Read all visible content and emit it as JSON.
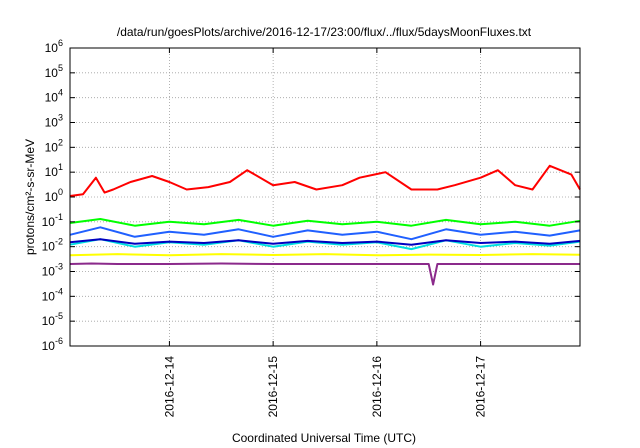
{
  "chart_data": {
    "type": "line",
    "title": "/data/run/goesPlots/archive/2016-12-17/23:00/flux/../flux/5daysMoonFluxes.txt",
    "xlabel": "Coordinated Universal Time (UTC)",
    "ylabel": "protons/cm²-s-sr-MeV",
    "y_scale": "log",
    "ylim": [
      1e-06,
      1000000.0
    ],
    "y_ticks": [
      {
        "value": 1e-06,
        "base": "10",
        "exp": "-6"
      },
      {
        "value": 1e-05,
        "base": "10",
        "exp": "-5"
      },
      {
        "value": 0.0001,
        "base": "10",
        "exp": "-4"
      },
      {
        "value": 0.001,
        "base": "10",
        "exp": "-3"
      },
      {
        "value": 0.01,
        "base": "10",
        "exp": "-2"
      },
      {
        "value": 0.1,
        "base": "10",
        "exp": "-1"
      },
      {
        "value": 1.0,
        "base": "10",
        "exp": "0"
      },
      {
        "value": 10.0,
        "base": "10",
        "exp": "1"
      },
      {
        "value": 100.0,
        "base": "10",
        "exp": "2"
      },
      {
        "value": 1000.0,
        "base": "10",
        "exp": "3"
      },
      {
        "value": 10000.0,
        "base": "10",
        "exp": "4"
      },
      {
        "value": 100000.0,
        "base": "10",
        "exp": "5"
      },
      {
        "value": 1000000.0,
        "base": "10",
        "exp": "6"
      }
    ],
    "xlim": [
      "2016-12-13 01:00",
      "2016-12-17 23:00"
    ],
    "x_ticks": [
      "2016-12-14",
      "2016-12-15",
      "2016-12-16",
      "2016-12-17"
    ],
    "grid": true,
    "legend": "none",
    "series": [
      {
        "color": "#ff0000",
        "x": [
          "2016-12-13 01:00",
          "2016-12-13 04:00",
          "2016-12-13 07:00",
          "2016-12-13 09:00",
          "2016-12-13 11:00",
          "2016-12-13 15:00",
          "2016-12-13 20:00",
          "2016-12-14 00:00",
          "2016-12-14 04:00",
          "2016-12-14 09:00",
          "2016-12-14 14:00",
          "2016-12-14 18:00",
          "2016-12-15 00:00",
          "2016-12-15 05:00",
          "2016-12-15 10:00",
          "2016-12-15 16:00",
          "2016-12-15 20:00",
          "2016-12-16 02:00",
          "2016-12-16 08:00",
          "2016-12-16 14:00",
          "2016-12-16 18:00",
          "2016-12-17 00:00",
          "2016-12-17 04:00",
          "2016-12-17 08:00",
          "2016-12-17 12:00",
          "2016-12-17 16:00",
          "2016-12-17 21:00",
          "2016-12-17 23:00"
        ],
        "y": [
          1.1,
          1.3,
          6,
          1.5,
          2,
          4,
          7,
          4,
          2,
          2.5,
          4,
          12,
          3,
          4,
          2,
          3,
          6,
          10,
          2,
          2,
          3,
          6,
          12,
          3,
          2,
          18,
          8,
          2
        ]
      },
      {
        "color": "#00ff00",
        "x": [
          "2016-12-13 01:00",
          "2016-12-13 08:00",
          "2016-12-13 16:00",
          "2016-12-14 00:00",
          "2016-12-14 08:00",
          "2016-12-14 16:00",
          "2016-12-15 00:00",
          "2016-12-15 08:00",
          "2016-12-15 16:00",
          "2016-12-16 00:00",
          "2016-12-16 08:00",
          "2016-12-16 16:00",
          "2016-12-17 00:00",
          "2016-12-17 08:00",
          "2016-12-17 16:00",
          "2016-12-17 23:00"
        ],
        "y": [
          0.09,
          0.13,
          0.07,
          0.1,
          0.08,
          0.12,
          0.07,
          0.11,
          0.08,
          0.1,
          0.07,
          0.12,
          0.08,
          0.1,
          0.07,
          0.11
        ]
      },
      {
        "color": "#00e0e0",
        "x": [
          "2016-12-13 01:00",
          "2016-12-13 08:00",
          "2016-12-13 16:00",
          "2016-12-14 00:00",
          "2016-12-14 08:00",
          "2016-12-14 16:00",
          "2016-12-15 00:00",
          "2016-12-15 08:00",
          "2016-12-15 16:00",
          "2016-12-16 00:00",
          "2016-12-16 08:00",
          "2016-12-16 16:00",
          "2016-12-17 00:00",
          "2016-12-17 08:00",
          "2016-12-17 16:00",
          "2016-12-17 23:00"
        ],
        "y": [
          0.012,
          0.02,
          0.01,
          0.015,
          0.012,
          0.018,
          0.01,
          0.016,
          0.012,
          0.015,
          0.008,
          0.018,
          0.01,
          0.014,
          0.011,
          0.016
        ]
      },
      {
        "color": "#2060ff",
        "x": [
          "2016-12-13 01:00",
          "2016-12-13 08:00",
          "2016-12-13 16:00",
          "2016-12-14 00:00",
          "2016-12-14 08:00",
          "2016-12-14 16:00",
          "2016-12-15 00:00",
          "2016-12-15 08:00",
          "2016-12-15 16:00",
          "2016-12-16 00:00",
          "2016-12-16 08:00",
          "2016-12-16 16:00",
          "2016-12-17 00:00",
          "2016-12-17 08:00",
          "2016-12-17 16:00",
          "2016-12-17 23:00"
        ],
        "y": [
          0.03,
          0.06,
          0.025,
          0.04,
          0.03,
          0.05,
          0.025,
          0.045,
          0.03,
          0.04,
          0.02,
          0.05,
          0.03,
          0.04,
          0.028,
          0.045
        ]
      },
      {
        "color": "#0000c0",
        "x": [
          "2016-12-13 01:00",
          "2016-12-13 08:00",
          "2016-12-13 16:00",
          "2016-12-14 00:00",
          "2016-12-14 08:00",
          "2016-12-14 16:00",
          "2016-12-15 00:00",
          "2016-12-15 08:00",
          "2016-12-15 16:00",
          "2016-12-16 00:00",
          "2016-12-16 08:00",
          "2016-12-16 16:00",
          "2016-12-17 00:00",
          "2016-12-17 08:00",
          "2016-12-17 16:00",
          "2016-12-17 23:00"
        ],
        "y": [
          0.015,
          0.02,
          0.013,
          0.016,
          0.014,
          0.018,
          0.013,
          0.017,
          0.014,
          0.016,
          0.012,
          0.018,
          0.014,
          0.016,
          0.013,
          0.017
        ]
      },
      {
        "color": "#ffff00",
        "x": [
          "2016-12-13 01:00",
          "2016-12-13 12:00",
          "2016-12-14 00:00",
          "2016-12-14 12:00",
          "2016-12-15 00:00",
          "2016-12-15 12:00",
          "2016-12-16 00:00",
          "2016-12-16 12:00",
          "2016-12-17 00:00",
          "2016-12-17 12:00",
          "2016-12-17 23:00"
        ],
        "y": [
          0.0045,
          0.005,
          0.0045,
          0.005,
          0.0046,
          0.005,
          0.0045,
          0.0048,
          0.0046,
          0.005,
          0.0047
        ]
      },
      {
        "color": "#8b2a8b",
        "x": [
          "2016-12-13 01:00",
          "2016-12-13 06:00",
          "2016-12-13 12:00",
          "2016-12-14 00:00",
          "2016-12-14 12:00",
          "2016-12-15 00:00",
          "2016-12-15 12:00",
          "2016-12-16 00:00",
          "2016-12-16 12:00",
          "2016-12-16 13:00",
          "2016-12-16 14:00",
          "2016-12-17 00:00",
          "2016-12-17 12:00",
          "2016-12-17 23:00"
        ],
        "y": [
          0.002,
          0.0021,
          0.002,
          0.002,
          0.0021,
          0.002,
          0.002,
          0.002,
          0.002,
          0.0003,
          0.002,
          0.002,
          0.002,
          0.002
        ]
      }
    ]
  }
}
